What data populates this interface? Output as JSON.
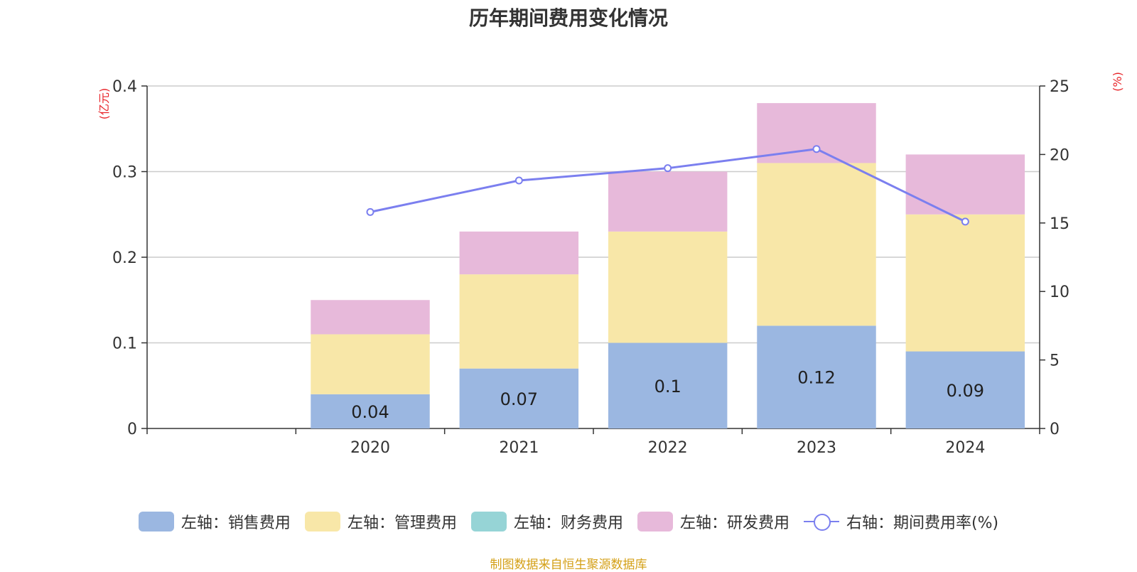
{
  "chart_data": {
    "type": "bar",
    "title": "历年期间费用变化情况",
    "categories": [
      "2020",
      "2021",
      "2022",
      "2023",
      "2024"
    ],
    "series": [
      {
        "name": "左轴：销售费用",
        "axis": "left",
        "kind": "bar",
        "color": "#9bb7e1",
        "values": [
          0.04,
          0.07,
          0.1,
          0.12,
          0.09
        ],
        "labels": [
          "0.04",
          "0.07",
          "0.1",
          "0.12",
          "0.09"
        ]
      },
      {
        "name": "左轴：管理费用",
        "axis": "left",
        "kind": "bar",
        "color": "#f8e7a8",
        "values": [
          0.07,
          0.11,
          0.13,
          0.19,
          0.16
        ]
      },
      {
        "name": "左轴：财务费用",
        "axis": "left",
        "kind": "bar",
        "color": "#96d4d6",
        "values": [
          0,
          0,
          0,
          0,
          0
        ]
      },
      {
        "name": "左轴：研发费用",
        "axis": "left",
        "kind": "bar",
        "color": "#e7b9da",
        "values": [
          0.04,
          0.05,
          0.07,
          0.07,
          0.07
        ]
      },
      {
        "name": "右轴：期间费用率(%)",
        "axis": "right",
        "kind": "line",
        "color": "#7b7fef",
        "values": [
          15.8,
          18.1,
          19.0,
          20.4,
          15.1
        ]
      }
    ],
    "left_axis": {
      "unit": "(亿元)",
      "ylim": [
        0,
        0.4
      ],
      "ticks": [
        "0",
        "0.1",
        "0.2",
        "0.3",
        "0.4"
      ]
    },
    "right_axis": {
      "unit": "(%)",
      "ylim": [
        0,
        25
      ],
      "ticks": [
        "0",
        "5",
        "10",
        "15",
        "20",
        "25"
      ]
    },
    "grid": true,
    "legend_position": "bottom"
  },
  "source": "制图数据来自恒生聚源数据库"
}
